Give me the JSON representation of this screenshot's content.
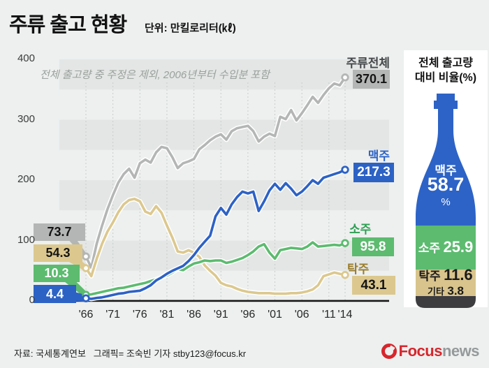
{
  "header": {
    "title": "주류 출고 현황",
    "unit": "단위: 만킬로리터(㎘)"
  },
  "colors": {
    "background": "#edf0ef",
    "stripe": "#e3e6e4",
    "grid": "#c8ccca",
    "axis": "#161616"
  },
  "chart_data": {
    "type": "line",
    "title": "주류 출고 현황",
    "unit": "만킬로리터(㎘)",
    "note": "전체 출고량 중 주정은 제외, 2006년부터 수입분 포함",
    "ylim": [
      0,
      400
    ],
    "y_ticks": [
      400,
      300,
      200,
      100,
      0
    ],
    "x_ticks": [
      {
        "year": 1966,
        "label": "'66"
      },
      {
        "year": 1971,
        "label": "'71"
      },
      {
        "year": 1976,
        "label": "'76"
      },
      {
        "year": 1981,
        "label": "'81"
      },
      {
        "year": 1986,
        "label": "'86"
      },
      {
        "year": 1991,
        "label": "'91"
      },
      {
        "year": 1996,
        "label": "'96"
      },
      {
        "year": 2001,
        "label": "'01"
      },
      {
        "year": 2006,
        "label": "'06"
      },
      {
        "year": 2011,
        "label": "'11"
      },
      {
        "year": 2014,
        "label": "'14"
      }
    ],
    "series": [
      {
        "name": "주류전체",
        "color": "#b4b6b5",
        "label_color": "#45474a",
        "box_text": "#141414",
        "start_label": "73.7",
        "end_label": "370.1",
        "points": [
          [
            1966,
            73.7
          ],
          [
            1967,
            55
          ],
          [
            1968,
            95
          ],
          [
            1969,
            125
          ],
          [
            1970,
            152
          ],
          [
            1971,
            175
          ],
          [
            1972,
            196
          ],
          [
            1973,
            210
          ],
          [
            1974,
            219
          ],
          [
            1975,
            204
          ],
          [
            1976,
            228
          ],
          [
            1977,
            234
          ],
          [
            1978,
            229
          ],
          [
            1979,
            246
          ],
          [
            1980,
            255
          ],
          [
            1981,
            253
          ],
          [
            1982,
            238
          ],
          [
            1983,
            220
          ],
          [
            1984,
            228
          ],
          [
            1985,
            231
          ],
          [
            1986,
            235
          ],
          [
            1987,
            251
          ],
          [
            1988,
            258
          ],
          [
            1989,
            266
          ],
          [
            1990,
            272
          ],
          [
            1991,
            276
          ],
          [
            1992,
            267
          ],
          [
            1993,
            281
          ],
          [
            1994,
            286
          ],
          [
            1995,
            288
          ],
          [
            1996,
            290
          ],
          [
            1997,
            281
          ],
          [
            1998,
            264
          ],
          [
            1999,
            272
          ],
          [
            2000,
            277
          ],
          [
            2001,
            273
          ],
          [
            2002,
            305
          ],
          [
            2003,
            301
          ],
          [
            2004,
            316
          ],
          [
            2005,
            299
          ],
          [
            2006,
            311
          ],
          [
            2007,
            324
          ],
          [
            2008,
            338
          ],
          [
            2009,
            328
          ],
          [
            2010,
            341
          ],
          [
            2011,
            352
          ],
          [
            2012,
            360
          ],
          [
            2013,
            357
          ],
          [
            2014,
            370.1
          ]
        ]
      },
      {
        "name": "탁주",
        "color": "#dcc88e",
        "label_color": "#9a7d2e",
        "box_text": "#141414",
        "start_label": "54.3",
        "end_label": "43.1",
        "points": [
          [
            1966,
            54.3
          ],
          [
            1967,
            41
          ],
          [
            1968,
            70
          ],
          [
            1969,
            95
          ],
          [
            1970,
            115
          ],
          [
            1971,
            130
          ],
          [
            1972,
            147
          ],
          [
            1973,
            160
          ],
          [
            1974,
            167
          ],
          [
            1975,
            169
          ],
          [
            1976,
            165
          ],
          [
            1977,
            148
          ],
          [
            1978,
            144
          ],
          [
            1979,
            157
          ],
          [
            1980,
            146
          ],
          [
            1981,
            125
          ],
          [
            1982,
            105
          ],
          [
            1983,
            82
          ],
          [
            1984,
            80
          ],
          [
            1985,
            84
          ],
          [
            1986,
            80
          ],
          [
            1987,
            73
          ],
          [
            1988,
            59
          ],
          [
            1989,
            50
          ],
          [
            1990,
            42
          ],
          [
            1991,
            30
          ],
          [
            1992,
            26
          ],
          [
            1993,
            24
          ],
          [
            1994,
            20
          ],
          [
            1995,
            17
          ],
          [
            1996,
            15
          ],
          [
            1997,
            14
          ],
          [
            1998,
            13
          ],
          [
            1999,
            13
          ],
          [
            2000,
            13
          ],
          [
            2001,
            12
          ],
          [
            2002,
            12
          ],
          [
            2003,
            12
          ],
          [
            2004,
            13
          ],
          [
            2005,
            13
          ],
          [
            2006,
            14
          ],
          [
            2007,
            16
          ],
          [
            2008,
            19
          ],
          [
            2009,
            26
          ],
          [
            2010,
            41
          ],
          [
            2011,
            44
          ],
          [
            2012,
            47
          ],
          [
            2013,
            45
          ],
          [
            2014,
            43.1
          ]
        ]
      },
      {
        "name": "소주",
        "color": "#5cbb6f",
        "label_color": "#2f9e53",
        "box_text": "#ffffff",
        "start_label": "10.3",
        "end_label": "95.8",
        "points": [
          [
            1966,
            10.3
          ],
          [
            1967,
            11
          ],
          [
            1968,
            13
          ],
          [
            1969,
            15
          ],
          [
            1970,
            17
          ],
          [
            1971,
            19
          ],
          [
            1972,
            21
          ],
          [
            1973,
            22
          ],
          [
            1974,
            24
          ],
          [
            1975,
            26
          ],
          [
            1976,
            28
          ],
          [
            1977,
            30
          ],
          [
            1978,
            33
          ],
          [
            1979,
            36
          ],
          [
            1980,
            39
          ],
          [
            1981,
            42
          ],
          [
            1982,
            47
          ],
          [
            1983,
            53
          ],
          [
            1984,
            51
          ],
          [
            1985,
            57
          ],
          [
            1986,
            62
          ],
          [
            1987,
            64
          ],
          [
            1988,
            67
          ],
          [
            1989,
            66
          ],
          [
            1990,
            67
          ],
          [
            1991,
            67
          ],
          [
            1992,
            63
          ],
          [
            1993,
            65
          ],
          [
            1994,
            68
          ],
          [
            1995,
            71
          ],
          [
            1996,
            76
          ],
          [
            1997,
            82
          ],
          [
            1998,
            90
          ],
          [
            1999,
            94
          ],
          [
            2000,
            80
          ],
          [
            2001,
            70
          ],
          [
            2002,
            84
          ],
          [
            2003,
            86
          ],
          [
            2004,
            88
          ],
          [
            2005,
            87
          ],
          [
            2006,
            86
          ],
          [
            2007,
            90
          ],
          [
            2008,
            97
          ],
          [
            2009,
            90
          ],
          [
            2010,
            91
          ],
          [
            2011,
            92
          ],
          [
            2012,
            93
          ],
          [
            2013,
            92
          ],
          [
            2014,
            95.8
          ]
        ]
      },
      {
        "name": "맥주",
        "color": "#2d62c5",
        "label_color": "#2d62c5",
        "box_text": "#ffffff",
        "start_label": "4.4",
        "end_label": "217.3",
        "points": [
          [
            1966,
            4.4
          ],
          [
            1967,
            3.5
          ],
          [
            1968,
            5
          ],
          [
            1969,
            6
          ],
          [
            1970,
            8
          ],
          [
            1971,
            10
          ],
          [
            1972,
            12
          ],
          [
            1973,
            13
          ],
          [
            1974,
            15
          ],
          [
            1975,
            16
          ],
          [
            1976,
            17
          ],
          [
            1977,
            21
          ],
          [
            1978,
            26
          ],
          [
            1979,
            34
          ],
          [
            1980,
            39
          ],
          [
            1981,
            45
          ],
          [
            1982,
            50
          ],
          [
            1983,
            54
          ],
          [
            1984,
            58
          ],
          [
            1985,
            66
          ],
          [
            1986,
            76
          ],
          [
            1987,
            88
          ],
          [
            1988,
            98
          ],
          [
            1989,
            108
          ],
          [
            1990,
            140
          ],
          [
            1991,
            154
          ],
          [
            1992,
            143
          ],
          [
            1993,
            160
          ],
          [
            1994,
            172
          ],
          [
            1995,
            181
          ],
          [
            1996,
            178
          ],
          [
            1997,
            181
          ],
          [
            1998,
            149
          ],
          [
            1999,
            165
          ],
          [
            2000,
            183
          ],
          [
            2001,
            194
          ],
          [
            2002,
            184
          ],
          [
            2003,
            195
          ],
          [
            2004,
            186
          ],
          [
            2005,
            175
          ],
          [
            2006,
            181
          ],
          [
            2007,
            190
          ],
          [
            2008,
            200
          ],
          [
            2009,
            194
          ],
          [
            2010,
            204
          ],
          [
            2011,
            207
          ],
          [
            2012,
            210
          ],
          [
            2013,
            213
          ],
          [
            2014,
            217.3
          ]
        ]
      }
    ]
  },
  "right_panel": {
    "title_line1": "전체 출고량",
    "title_line2": "대비 비율(%)",
    "sections": [
      {
        "name": "맥주",
        "value": "58.7",
        "unit": "%",
        "color": "#2d63c6",
        "text": "#ffffff"
      },
      {
        "name": "소주",
        "value": "25.9",
        "color": "#5cbb6f",
        "text": "#ffffff"
      },
      {
        "name": "탁주",
        "value": "11.6",
        "color": "#d8c48c",
        "text": "#1a1a1a"
      },
      {
        "name": "기타",
        "value": "3.8",
        "color": "#3d3d40",
        "text": "#1a1a1a"
      }
    ]
  },
  "footer": {
    "source": "자료: 국세통계연보",
    "credit": "그래픽= 조숙빈 기자 stby123@focus.kr",
    "logo_focus": "Focus",
    "logo_news": "news"
  }
}
